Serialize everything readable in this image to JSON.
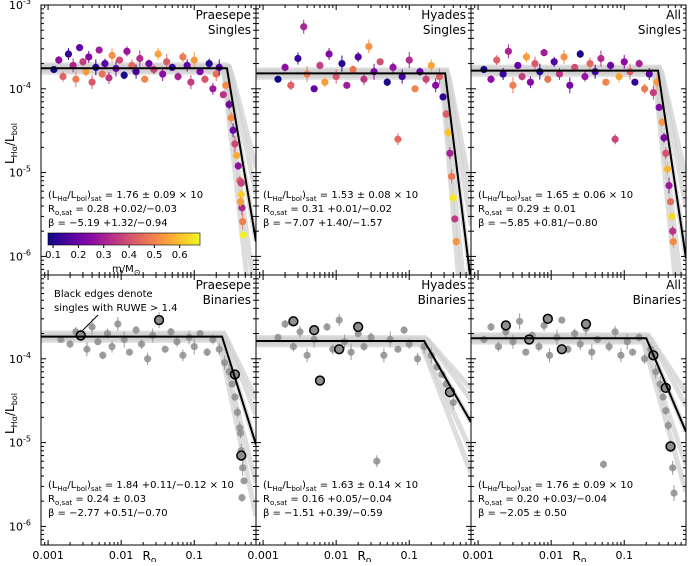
{
  "figure": {
    "xlabel": "R_o",
    "ylabel": "L_Hα/L_bol",
    "colorbar": {
      "label": "m/M_⊙",
      "ticks": [
        "0.1",
        "0.2",
        "0.3",
        "0.4",
        "0.5",
        "0.6"
      ],
      "range": [
        0.08,
        0.68
      ],
      "colormap": "plasma"
    },
    "callout": [
      "Black edges denote",
      "singles with RUWE > 1.4"
    ]
  },
  "chart_data": [
    {
      "type": "scatter",
      "panel": "top-left",
      "title_lines": [
        "Praesepe",
        "Singles"
      ],
      "xscale": "log",
      "yscale": "log",
      "xlim": [
        0.0008,
        0.7
      ],
      "ylim": [
        6e-07,
        0.001
      ],
      "x_ticks": [
        "0.001",
        "0.01",
        "0.1"
      ],
      "y_ticks": [
        "10^-3",
        "10^-4",
        "10^-5",
        "10^-6"
      ],
      "fit": {
        "sat": 0.000176,
        "ro_sat": 0.28,
        "beta": -5.19
      },
      "annotation": {
        "sat": "(L_Hα/L_bol)_sat = 1.76 ± 0.09 × 10^-4",
        "ro": "R_o,sat = 0.28 +0.02/−0.03",
        "beta": "β = −5.19 +1.32/−0.94"
      },
      "points": [
        [
          0.0012,
          0.00017
        ],
        [
          0.0014,
          0.00022
        ],
        [
          0.0016,
          0.00014
        ],
        [
          0.0019,
          0.00026
        ],
        [
          0.0022,
          0.00019
        ],
        [
          0.0024,
          0.00013
        ],
        [
          0.0027,
          0.00031
        ],
        [
          0.003,
          0.00021
        ],
        [
          0.0033,
          0.00016
        ],
        [
          0.0036,
          0.00024
        ],
        [
          0.004,
          0.00012
        ],
        [
          0.0045,
          0.00018
        ],
        [
          0.005,
          0.00029
        ],
        [
          0.0055,
          0.00015
        ],
        [
          0.006,
          0.0002
        ],
        [
          0.0068,
          0.000135
        ],
        [
          0.0075,
          0.00025
        ],
        [
          0.0085,
          0.000175
        ],
        [
          0.0095,
          0.00022
        ],
        [
          0.011,
          0.000145
        ],
        [
          0.012,
          0.00028
        ],
        [
          0.014,
          0.00019
        ],
        [
          0.016,
          0.00016
        ],
        [
          0.018,
          0.00023
        ],
        [
          0.021,
          0.00013
        ],
        [
          0.024,
          0.0002
        ],
        [
          0.028,
          0.00017
        ],
        [
          0.032,
          0.00026
        ],
        [
          0.037,
          0.00015
        ],
        [
          0.042,
          0.00021
        ],
        [
          0.05,
          0.00018
        ],
        [
          0.06,
          0.00014
        ],
        [
          0.07,
          0.00024
        ],
        [
          0.08,
          0.00019
        ],
        [
          0.09,
          0.00012
        ],
        [
          0.1,
          0.00022
        ],
        [
          0.12,
          0.00016
        ],
        [
          0.14,
          0.00013
        ],
        [
          0.16,
          0.0002
        ],
        [
          0.18,
          0.0001
        ],
        [
          0.2,
          0.00015
        ],
        [
          0.22,
          0.00018
        ],
        [
          0.25,
          8.5e-05
        ],
        [
          0.27,
          0.00011
        ],
        [
          0.3,
          6.5e-05
        ],
        [
          0.32,
          4.5e-05
        ],
        [
          0.34,
          3.2e-05
        ],
        [
          0.36,
          2.2e-05
        ],
        [
          0.38,
          1.6e-05
        ],
        [
          0.4,
          1.2e-05
        ],
        [
          0.42,
          8e-06
        ],
        [
          0.44,
          5.5e-06
        ],
        [
          0.45,
          3.8e-06
        ],
        [
          0.46,
          2.6e-06
        ],
        [
          0.47,
          1.8e-06
        ],
        [
          0.44,
          7.5e-06
        ],
        [
          0.43,
          4.5e-06
        ]
      ]
    },
    {
      "type": "scatter",
      "panel": "top-middle",
      "title_lines": [
        "Hyades",
        "Singles"
      ],
      "xscale": "log",
      "yscale": "log",
      "xlim": [
        0.0008,
        0.7
      ],
      "ylim": [
        6e-07,
        0.001
      ],
      "fit": {
        "sat": 0.000153,
        "ro_sat": 0.31,
        "beta": -7.07
      },
      "annotation": {
        "sat": "(L_Hα/L_bol)_sat = 1.53 ± 0.08 × 10^-4",
        "ro": "R_o,sat = 0.31 +0.01/−0.02",
        "beta": "β = −7.07 +1.40/−1.57"
      },
      "points": [
        [
          0.0016,
          0.00013
        ],
        [
          0.002,
          0.00018
        ],
        [
          0.0024,
          0.00011
        ],
        [
          0.003,
          0.00023
        ],
        [
          0.0036,
          0.00055
        ],
        [
          0.004,
          0.00015
        ],
        [
          0.005,
          0.0001
        ],
        [
          0.006,
          0.00019
        ],
        [
          0.007,
          0.00012
        ],
        [
          0.008,
          0.00026
        ],
        [
          0.01,
          0.00014
        ],
        [
          0.012,
          0.0002
        ],
        [
          0.014,
          0.00011
        ],
        [
          0.017,
          0.00017
        ],
        [
          0.02,
          0.00024
        ],
        [
          0.024,
          0.00013
        ],
        [
          0.028,
          0.00032
        ],
        [
          0.033,
          0.00016
        ],
        [
          0.04,
          0.00021
        ],
        [
          0.05,
          0.00012
        ],
        [
          0.06,
          0.00018
        ],
        [
          0.07,
          2.5e-05
        ],
        [
          0.08,
          0.00014
        ],
        [
          0.1,
          0.00022
        ],
        [
          0.12,
          0.0001
        ],
        [
          0.14,
          0.00016
        ],
        [
          0.17,
          0.00013
        ],
        [
          0.2,
          0.00019
        ],
        [
          0.23,
          0.00011
        ],
        [
          0.26,
          0.00014
        ],
        [
          0.29,
          8e-05
        ],
        [
          0.32,
          5e-05
        ],
        [
          0.34,
          3e-05
        ],
        [
          0.36,
          1.7e-05
        ],
        [
          0.38,
          9e-06
        ],
        [
          0.4,
          5e-06
        ],
        [
          0.42,
          2.8e-06
        ],
        [
          0.44,
          1.5e-06
        ]
      ]
    },
    {
      "type": "scatter",
      "panel": "top-right",
      "title_lines": [
        "All",
        "Singles"
      ],
      "xscale": "log",
      "yscale": "log",
      "xlim": [
        0.0008,
        0.7
      ],
      "ylim": [
        6e-07,
        0.001
      ],
      "fit": {
        "sat": 0.000165,
        "ro_sat": 0.29,
        "beta": -5.85
      },
      "annotation": {
        "sat": "(L_Hα/L_bol)_sat = 1.65 ± 0.06 × 10^-4",
        "ro": "R_o,sat = 0.29 ± 0.01",
        "beta": "β = −5.85 +0.81/−0.80"
      },
      "points": [
        [
          0.0012,
          0.00017
        ],
        [
          0.0015,
          0.00013
        ],
        [
          0.0018,
          0.00022
        ],
        [
          0.0022,
          0.00015
        ],
        [
          0.0026,
          0.00028
        ],
        [
          0.003,
          0.00011
        ],
        [
          0.0035,
          0.00019
        ],
        [
          0.004,
          0.00014
        ],
        [
          0.0046,
          0.00024
        ],
        [
          0.0052,
          0.00012
        ],
        [
          0.006,
          0.0002
        ],
        [
          0.007,
          0.00016
        ],
        [
          0.008,
          0.00027
        ],
        [
          0.009,
          0.00013
        ],
        [
          0.011,
          0.00021
        ],
        [
          0.013,
          0.00015
        ],
        [
          0.015,
          0.00024
        ],
        [
          0.018,
          0.00011
        ],
        [
          0.021,
          0.00018
        ],
        [
          0.025,
          0.00026
        ],
        [
          0.029,
          0.00014
        ],
        [
          0.034,
          0.0002
        ],
        [
          0.04,
          0.00016
        ],
        [
          0.048,
          0.00023
        ],
        [
          0.056,
          0.00012
        ],
        [
          0.065,
          0.00019
        ],
        [
          0.075,
          2.5e-05
        ],
        [
          0.085,
          0.00014
        ],
        [
          0.1,
          0.00021
        ],
        [
          0.12,
          0.00016
        ],
        [
          0.14,
          0.00012
        ],
        [
          0.16,
          0.0002
        ],
        [
          0.19,
          0.0001
        ],
        [
          0.22,
          0.00015
        ],
        [
          0.25,
          9e-05
        ],
        [
          0.28,
          0.00012
        ],
        [
          0.3,
          6e-05
        ],
        [
          0.33,
          4e-05
        ],
        [
          0.35,
          2.6e-05
        ],
        [
          0.37,
          1.7e-05
        ],
        [
          0.39,
          1.1e-05
        ],
        [
          0.41,
          7e-06
        ],
        [
          0.43,
          4.5e-06
        ],
        [
          0.45,
          3e-06
        ],
        [
          0.46,
          2e-06
        ],
        [
          0.47,
          1.5e-06
        ]
      ]
    },
    {
      "type": "scatter",
      "panel": "bottom-left",
      "title_lines": [
        "Praesepe",
        "Binaries"
      ],
      "xscale": "log",
      "yscale": "log",
      "xlim": [
        0.0008,
        0.7
      ],
      "ylim": [
        6e-07,
        0.001
      ],
      "fit": {
        "sat": 0.000184,
        "ro_sat": 0.24,
        "beta": -2.77
      },
      "annotation": {
        "sat": "(L_Hα/L_bol)_sat = 1.84 +0.11/−0.12 × 10^-4",
        "ro": "R_o,sat = 0.24 ± 0.03",
        "beta": "β = −2.77 +0.51/−0.70"
      },
      "points": [
        [
          0.0015,
          0.00017
        ],
        [
          0.002,
          0.00015
        ],
        [
          0.0024,
          0.00021
        ],
        [
          0.0028,
          0.00019
        ],
        [
          0.0034,
          0.00013
        ],
        [
          0.004,
          0.00024
        ],
        [
          0.0048,
          0.00016
        ],
        [
          0.0056,
          0.00011
        ],
        [
          0.0065,
          0.0002
        ],
        [
          0.0075,
          0.00014
        ],
        [
          0.009,
          0.00026
        ],
        [
          0.011,
          0.00017
        ],
        [
          0.013,
          0.00012
        ],
        [
          0.016,
          0.00022
        ],
        [
          0.019,
          0.00015
        ],
        [
          0.023,
          0.0001
        ],
        [
          0.027,
          0.00019
        ],
        [
          0.033,
          0.00029
        ],
        [
          0.04,
          0.00013
        ],
        [
          0.048,
          0.00021
        ],
        [
          0.058,
          0.00016
        ],
        [
          0.07,
          0.00011
        ],
        [
          0.085,
          0.00018
        ],
        [
          0.1,
          0.00014
        ],
        [
          0.12,
          0.0002
        ],
        [
          0.15,
          0.00012
        ],
        [
          0.18,
          0.00017
        ],
        [
          0.22,
          0.00013
        ],
        [
          0.26,
          9e-05
        ],
        [
          0.3,
          7e-05
        ],
        [
          0.33,
          5e-05
        ],
        [
          0.36,
          3.5e-05
        ],
        [
          0.39,
          2.3e-05
        ],
        [
          0.42,
          1.5e-05
        ],
        [
          0.44,
          8e-06
        ],
        [
          0.46,
          5e-06
        ],
        [
          0.48,
          3.5e-06
        ],
        [
          0.45,
          2.2e-06
        ],
        [
          0.43,
          1.3e-05
        ]
      ],
      "edged": [
        [
          0.0028,
          0.00019
        ],
        [
          0.033,
          0.00029
        ],
        [
          0.36,
          6.5e-05
        ],
        [
          0.44,
          7e-06
        ]
      ]
    },
    {
      "type": "scatter",
      "panel": "bottom-middle",
      "title_lines": [
        "Hyades",
        "Binaries"
      ],
      "xscale": "log",
      "yscale": "log",
      "xlim": [
        0.0008,
        0.7
      ],
      "ylim": [
        6e-07,
        0.001
      ],
      "fit": {
        "sat": 0.000163,
        "ro_sat": 0.16,
        "beta": -1.51
      },
      "annotation": {
        "sat": "(L_Hα/L_bol)_sat = 1.63 ± 0.14 × 10^-4",
        "ro": "R_o,sat = 0.16 +0.05/−0.04",
        "beta": "β = −1.51 +0.39/−0.59"
      },
      "points": [
        [
          0.0016,
          0.00018
        ],
        [
          0.002,
          0.00026
        ],
        [
          0.0026,
          0.00014
        ],
        [
          0.0032,
          0.00021
        ],
        [
          0.004,
          0.00011
        ],
        [
          0.005,
          0.00017
        ],
        [
          0.006,
          5.5e-05
        ],
        [
          0.0075,
          0.00024
        ],
        [
          0.009,
          0.00013
        ],
        [
          0.011,
          0.00029
        ],
        [
          0.013,
          0.00016
        ],
        [
          0.016,
          0.00012
        ],
        [
          0.02,
          0.0002
        ],
        [
          0.024,
          0.00014
        ],
        [
          0.03,
          0.00018
        ],
        [
          0.036,
          6e-06
        ],
        [
          0.045,
          0.00011
        ],
        [
          0.055,
          0.00017
        ],
        [
          0.07,
          0.00013
        ],
        [
          0.085,
          0.00022
        ],
        [
          0.1,
          0.00015
        ],
        [
          0.13,
          0.0001
        ],
        [
          0.16,
          0.00014
        ],
        [
          0.2,
          0.00011
        ],
        [
          0.24,
          8e-05
        ],
        [
          0.28,
          6.5e-05
        ],
        [
          0.32,
          5e-05
        ],
        [
          0.36,
          4e-05
        ],
        [
          0.4,
          3e-05
        ]
      ],
      "edged": [
        [
          0.0026,
          0.00028
        ],
        [
          0.005,
          0.00022
        ],
        [
          0.006,
          5.5e-05
        ],
        [
          0.011,
          0.00013
        ],
        [
          0.02,
          0.00024
        ],
        [
          0.36,
          4e-05
        ]
      ]
    },
    {
      "type": "scatter",
      "panel": "bottom-right",
      "title_lines": [
        "All",
        "Binaries"
      ],
      "xscale": "log",
      "yscale": "log",
      "xlim": [
        0.0008,
        0.7
      ],
      "ylim": [
        6e-07,
        0.001
      ],
      "fit": {
        "sat": 0.000176,
        "ro_sat": 0.2,
        "beta": -2.05
      },
      "annotation": {
        "sat": "(L_Hα/L_bol)_sat = 1.76 ± 0.09 × 10^-4",
        "ro": "R_o,sat = 0.20 +0.03/−0.04",
        "beta": "β = −2.05 ± 0.50"
      },
      "points": [
        [
          0.0012,
          0.00017
        ],
        [
          0.0015,
          0.00024
        ],
        [
          0.0019,
          0.00014
        ],
        [
          0.0024,
          0.00021
        ],
        [
          0.003,
          0.00016
        ],
        [
          0.0037,
          0.00028
        ],
        [
          0.0045,
          0.00012
        ],
        [
          0.0055,
          0.00019
        ],
        [
          0.0068,
          0.00014
        ],
        [
          0.008,
          0.00025
        ],
        [
          0.0095,
          0.00011
        ],
        [
          0.012,
          0.00018
        ],
        [
          0.014,
          0.00029
        ],
        [
          0.017,
          0.00013
        ],
        [
          0.021,
          0.0002
        ],
        [
          0.025,
          0.00015
        ],
        [
          0.03,
          0.00023
        ],
        [
          0.036,
          0.00012
        ],
        [
          0.043,
          0.00017
        ],
        [
          0.052,
          5.5e-06
        ],
        [
          0.062,
          0.00014
        ],
        [
          0.075,
          0.00021
        ],
        [
          0.09,
          0.00011
        ],
        [
          0.11,
          0.00016
        ],
        [
          0.13,
          0.00012
        ],
        [
          0.16,
          0.00018
        ],
        [
          0.19,
          0.0001
        ],
        [
          0.23,
          0.00013
        ],
        [
          0.27,
          7e-05
        ],
        [
          0.31,
          5e-05
        ],
        [
          0.34,
          3.5e-05
        ],
        [
          0.37,
          2.4e-05
        ],
        [
          0.4,
          1.6e-05
        ],
        [
          0.43,
          9e-06
        ],
        [
          0.46,
          5e-06
        ],
        [
          0.48,
          2.5e-06
        ]
      ],
      "edged": [
        [
          0.0024,
          0.00025
        ],
        [
          0.005,
          0.00017
        ],
        [
          0.009,
          0.0003
        ],
        [
          0.014,
          0.00013
        ],
        [
          0.03,
          0.00026
        ],
        [
          0.25,
          0.00011
        ],
        [
          0.37,
          4.5e-05
        ],
        [
          0.43,
          9e-06
        ]
      ]
    }
  ]
}
